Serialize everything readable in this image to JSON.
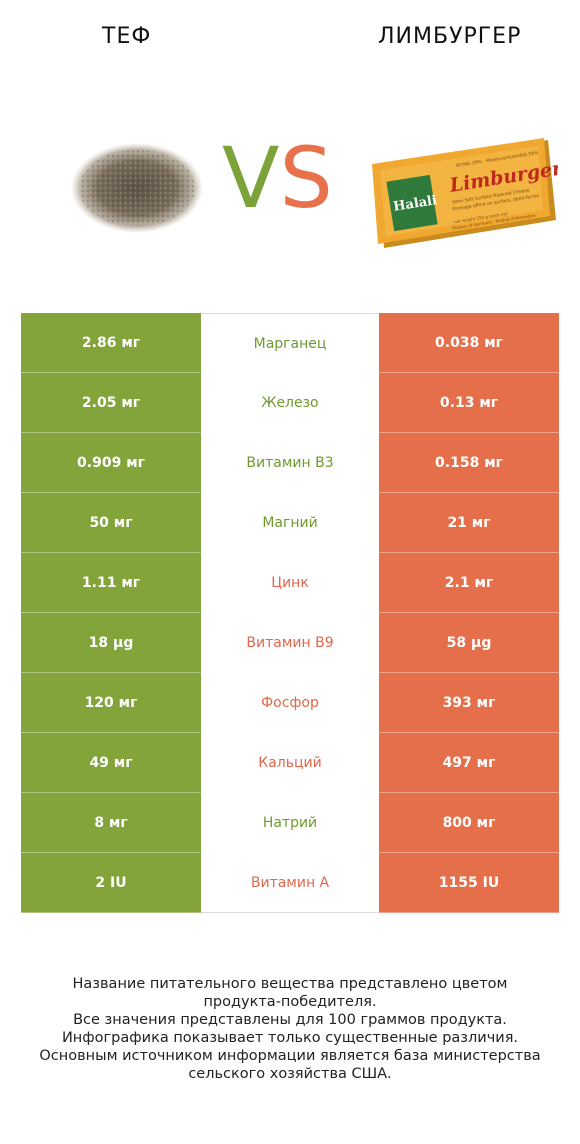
{
  "header": {
    "left_title": "ТЕФ",
    "right_title": "ЛИМБУРГЕР"
  },
  "vs": {
    "v": "V",
    "s": "S"
  },
  "cheese_label": {
    "brand": "Halali",
    "product": "Limburger",
    "line1": "Semi Soft Surface Ripened Cheese",
    "line2": "Fromage affiné en surface, demi-ferme",
    "top": "BF/MG 29% · Moisture/Humidité 54%",
    "weight": "net weight 250 g poids net",
    "origin": "Product of Germany · Produit d'Allemagne"
  },
  "colors": {
    "teff": "#83a43a",
    "limburger": "#e56f4a"
  },
  "rows": [
    {
      "left": "2.86 мг",
      "name": "Марганец",
      "right": "0.038 мг",
      "winner": "green"
    },
    {
      "left": "2.05 мг",
      "name": "Железо",
      "right": "0.13 мг",
      "winner": "green"
    },
    {
      "left": "0.909 мг",
      "name": "Витамин B3",
      "right": "0.158 мг",
      "winner": "green"
    },
    {
      "left": "50 мг",
      "name": "Магний",
      "right": "21 мг",
      "winner": "green"
    },
    {
      "left": "1.11 мг",
      "name": "Цинк",
      "right": "2.1 мг",
      "winner": "orange"
    },
    {
      "left": "18 µg",
      "name": "Витамин B9",
      "right": "58 µg",
      "winner": "orange"
    },
    {
      "left": "120 мг",
      "name": "Фосфор",
      "right": "393 мг",
      "winner": "orange"
    },
    {
      "left": "49 мг",
      "name": "Кальций",
      "right": "497 мг",
      "winner": "orange"
    },
    {
      "left": "8 мг",
      "name": "Натрий",
      "right": "800 мг",
      "winner": "green"
    },
    {
      "left": "2 IU",
      "name": "Витамин A",
      "right": "1155 IU",
      "winner": "orange"
    }
  ],
  "footer": {
    "line1": "Название питательного вещества представлено цветом",
    "line2": "продукта-победителя.",
    "line3": "Все значения представлены для 100 граммов продукта.",
    "line4": "Инфографика показывает только существенные различия.",
    "line5": "Основным источником информации является база министерства",
    "line6": "сельского хозяйства США."
  }
}
